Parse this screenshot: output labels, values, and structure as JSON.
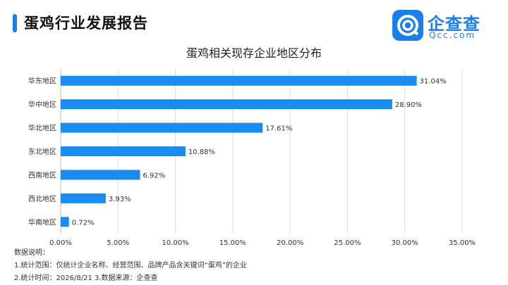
{
  "header": {
    "title": "蛋鸡行业发展报告",
    "logo_name": "企查查",
    "logo_domain": "Qcc.com",
    "accent_color": "#1a7fe8"
  },
  "chart_data": {
    "type": "bar",
    "orientation": "horizontal",
    "title": "蛋鸡相关现存企业地区分布",
    "categories": [
      "华东地区",
      "华中地区",
      "华北地区",
      "东北地区",
      "西南地区",
      "西北地区",
      "华南地区"
    ],
    "values": [
      31.04,
      28.9,
      17.61,
      10.88,
      6.92,
      3.93,
      0.72
    ],
    "value_labels": [
      "31.04%",
      "28.90%",
      "17.61%",
      "10.88%",
      "6.92%",
      "3.93%",
      "0.72%"
    ],
    "xlim": [
      0,
      35
    ],
    "xticks": [
      0,
      5,
      10,
      15,
      20,
      25,
      30,
      35
    ],
    "xtick_labels": [
      "0.00%",
      "5.00%",
      "10.00%",
      "15.00%",
      "20.00%",
      "25.00%",
      "30.00%",
      "35.00%"
    ],
    "xlabel": "",
    "ylabel": "",
    "grid": "vertical",
    "bar_color": "#1a8cf0"
  },
  "notes": {
    "heading": "数据说明：",
    "line1": "1.统计范围：仅统计企业名称、经营范围、品牌产品含关键词“蛋鸡”的企业",
    "line2": "2.统计时间：2026/8/21  3.数据来源：企查查"
  }
}
